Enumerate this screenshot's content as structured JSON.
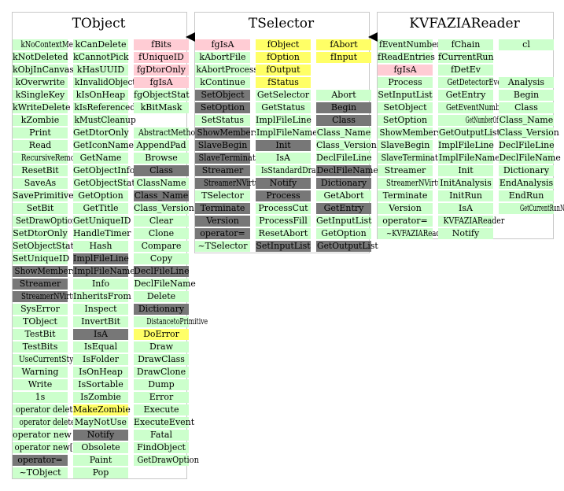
{
  "colors": {
    "method": "#ccffcc",
    "member": "#ffccd4",
    "data_member": "#ffff66",
    "hidden": "#777777",
    "border": "#c8c8c8"
  },
  "legend_kinds": {
    "g": "method (public)",
    "p": "enum / constant member",
    "y": "data member",
    "x": "private / inherited-hidden"
  },
  "classes": [
    {
      "name": "TObject",
      "columns": [
        [
          {
            "t": "kNoContextMenu",
            "k": "g"
          },
          {
            "t": "kNotDeleted",
            "k": "g"
          },
          {
            "t": "kObjInCanvas",
            "k": "g"
          },
          {
            "t": "kOverwrite",
            "k": "g"
          },
          {
            "t": "kSingleKey",
            "k": "g"
          },
          {
            "t": "kWriteDelete",
            "k": "g"
          },
          {
            "t": "kZombie",
            "k": "g"
          },
          {
            "t": "Print",
            "k": "g"
          },
          {
            "t": "Read",
            "k": "g"
          },
          {
            "t": "RecursiveRemove",
            "k": "g"
          },
          {
            "t": "ResetBit",
            "k": "g"
          },
          {
            "t": "SaveAs",
            "k": "g"
          },
          {
            "t": "SavePrimitive",
            "k": "g"
          },
          {
            "t": "SetBit",
            "k": "g"
          },
          {
            "t": "SetDrawOption",
            "k": "g"
          },
          {
            "t": "SetDtorOnly",
            "k": "g"
          },
          {
            "t": "SetObjectStat",
            "k": "g"
          },
          {
            "t": "SetUniqueID",
            "k": "g"
          },
          {
            "t": "ShowMembers",
            "k": "x"
          },
          {
            "t": "Streamer",
            "k": "x"
          },
          {
            "t": "StreamerNVirtual",
            "k": "x"
          },
          {
            "t": "SysError",
            "k": "g"
          },
          {
            "t": "TObject",
            "k": "g"
          },
          {
            "t": "TestBit",
            "k": "g"
          },
          {
            "t": "TestBits",
            "k": "g"
          },
          {
            "t": "UseCurrentStyle",
            "k": "g"
          },
          {
            "t": "Warning",
            "k": "g"
          },
          {
            "t": "Write",
            "k": "g"
          },
          {
            "t": "1s",
            "k": "g"
          },
          {
            "t": "operator delete",
            "k": "g"
          },
          {
            "t": "operator delete[]",
            "k": "g"
          },
          {
            "t": "operator new",
            "k": "g"
          },
          {
            "t": "operator new[]",
            "k": "g"
          },
          {
            "t": "operator=",
            "k": "x"
          },
          {
            "t": "~TObject",
            "k": "g"
          }
        ],
        [
          {
            "t": "kCanDelete",
            "k": "g"
          },
          {
            "t": "kCannotPick",
            "k": "g"
          },
          {
            "t": "kHasUUID",
            "k": "g"
          },
          {
            "t": "kInvalidObject",
            "k": "g"
          },
          {
            "t": "kIsOnHeap",
            "k": "g"
          },
          {
            "t": "kIsReferenced",
            "k": "g"
          },
          {
            "t": "kMustCleanup",
            "k": "g"
          },
          {
            "t": "GetDtorOnly",
            "k": "g"
          },
          {
            "t": "GetIconName",
            "k": "g"
          },
          {
            "t": "GetName",
            "k": "g"
          },
          {
            "t": "GetObjectInfo",
            "k": "g"
          },
          {
            "t": "GetObjectStat",
            "k": "g"
          },
          {
            "t": "GetOption",
            "k": "g"
          },
          {
            "t": "GetTitle",
            "k": "g"
          },
          {
            "t": "GetUniqueID",
            "k": "g"
          },
          {
            "t": "HandleTimer",
            "k": "g"
          },
          {
            "t": "Hash",
            "k": "g"
          },
          {
            "t": "ImplFileLine",
            "k": "x"
          },
          {
            "t": "ImplFileName",
            "k": "x"
          },
          {
            "t": "Info",
            "k": "g"
          },
          {
            "t": "InheritsFrom",
            "k": "g"
          },
          {
            "t": "Inspect",
            "k": "g"
          },
          {
            "t": "InvertBit",
            "k": "g"
          },
          {
            "t": "IsA",
            "k": "x"
          },
          {
            "t": "IsEqual",
            "k": "g"
          },
          {
            "t": "IsFolder",
            "k": "g"
          },
          {
            "t": "IsOnHeap",
            "k": "g"
          },
          {
            "t": "IsSortable",
            "k": "g"
          },
          {
            "t": "IsZombie",
            "k": "g"
          },
          {
            "t": "MakeZombie",
            "k": "y"
          },
          {
            "t": "MayNotUse",
            "k": "g"
          },
          {
            "t": "Notify",
            "k": "x"
          },
          {
            "t": "Obsolete",
            "k": "g"
          },
          {
            "t": "Paint",
            "k": "g"
          },
          {
            "t": "Pop",
            "k": "g"
          }
        ],
        [
          {
            "t": "fBits",
            "k": "p"
          },
          {
            "t": "fUniqueID",
            "k": "p"
          },
          {
            "t": "fgDtorOnly",
            "k": "p"
          },
          {
            "t": "fgIsA",
            "k": "p"
          },
          {
            "t": "fgObjectStat",
            "k": "g"
          },
          {
            "t": "kBitMask",
            "k": "g"
          },
          {
            "t": "",
            "k": "b"
          },
          {
            "t": "AbstractMethod",
            "k": "g"
          },
          {
            "t": "AppendPad",
            "k": "g"
          },
          {
            "t": "Browse",
            "k": "g"
          },
          {
            "t": "Class",
            "k": "x"
          },
          {
            "t": "ClassName",
            "k": "g"
          },
          {
            "t": "Class_Name",
            "k": "x"
          },
          {
            "t": "Class_Version",
            "k": "g"
          },
          {
            "t": "Clear",
            "k": "g"
          },
          {
            "t": "Clone",
            "k": "g"
          },
          {
            "t": "Compare",
            "k": "g"
          },
          {
            "t": "Copy",
            "k": "g"
          },
          {
            "t": "DeclFileLine",
            "k": "x"
          },
          {
            "t": "DeclFileName",
            "k": "g"
          },
          {
            "t": "Delete",
            "k": "g"
          },
          {
            "t": "Dictionary",
            "k": "x"
          },
          {
            "t": "DistancetoPrimitive",
            "k": "g"
          },
          {
            "t": "DoError",
            "k": "y"
          },
          {
            "t": "Draw",
            "k": "g"
          },
          {
            "t": "DrawClass",
            "k": "g"
          },
          {
            "t": "DrawClone",
            "k": "g"
          },
          {
            "t": "Dump",
            "k": "g"
          },
          {
            "t": "Error",
            "k": "g"
          },
          {
            "t": "Execute",
            "k": "g"
          },
          {
            "t": "ExecuteEvent",
            "k": "g"
          },
          {
            "t": "Fatal",
            "k": "g"
          },
          {
            "t": "FindObject",
            "k": "g"
          },
          {
            "t": "GetDrawOption",
            "k": "g"
          }
        ]
      ]
    },
    {
      "name": "TSelector",
      "columns": [
        [
          {
            "t": "fgIsA",
            "k": "p"
          },
          {
            "t": "kAbortFile",
            "k": "g"
          },
          {
            "t": "kAbortProcess",
            "k": "g"
          },
          {
            "t": "kContinue",
            "k": "g"
          },
          {
            "t": "SetObject",
            "k": "x"
          },
          {
            "t": "SetOption",
            "k": "x"
          },
          {
            "t": "SetStatus",
            "k": "g"
          },
          {
            "t": "ShowMembers",
            "k": "x"
          },
          {
            "t": "SlaveBegin",
            "k": "x"
          },
          {
            "t": "SlaveTerminate",
            "k": "x"
          },
          {
            "t": "Streamer",
            "k": "x"
          },
          {
            "t": "StreamerNVirtual",
            "k": "x"
          },
          {
            "t": "TSelector",
            "k": "g"
          },
          {
            "t": "Terminate",
            "k": "x"
          },
          {
            "t": "Version",
            "k": "x"
          },
          {
            "t": "operator=",
            "k": "x"
          },
          {
            "t": "~TSelector",
            "k": "g"
          }
        ],
        [
          {
            "t": "fObject",
            "k": "y"
          },
          {
            "t": "fOption",
            "k": "y"
          },
          {
            "t": "fOutput",
            "k": "y"
          },
          {
            "t": "fStatus",
            "k": "y"
          },
          {
            "t": "GetSelector",
            "k": "g"
          },
          {
            "t": "GetStatus",
            "k": "g"
          },
          {
            "t": "ImplFileLine",
            "k": "g"
          },
          {
            "t": "ImplFileName",
            "k": "g"
          },
          {
            "t": "Init",
            "k": "x"
          },
          {
            "t": "IsA",
            "k": "g"
          },
          {
            "t": "IsStandardDraw",
            "k": "g"
          },
          {
            "t": "Notify",
            "k": "x"
          },
          {
            "t": "Process",
            "k": "x"
          },
          {
            "t": "ProcessCut",
            "k": "g"
          },
          {
            "t": "ProcessFill",
            "k": "g"
          },
          {
            "t": "ResetAbort",
            "k": "g"
          },
          {
            "t": "SetInputList",
            "k": "x"
          }
        ],
        [
          {
            "t": "fAbort",
            "k": "y"
          },
          {
            "t": "fInput",
            "k": "y"
          },
          {
            "t": "",
            "k": "b"
          },
          {
            "t": "",
            "k": "b"
          },
          {
            "t": "Abort",
            "k": "g"
          },
          {
            "t": "Begin",
            "k": "x"
          },
          {
            "t": "Class",
            "k": "x"
          },
          {
            "t": "Class_Name",
            "k": "g"
          },
          {
            "t": "Class_Version",
            "k": "g"
          },
          {
            "t": "DeclFileLine",
            "k": "g"
          },
          {
            "t": "DeclFileName",
            "k": "x"
          },
          {
            "t": "Dictionary",
            "k": "x"
          },
          {
            "t": "GetAbort",
            "k": "g"
          },
          {
            "t": "GetEntry",
            "k": "x"
          },
          {
            "t": "GetInputList",
            "k": "g"
          },
          {
            "t": "GetOption",
            "k": "g"
          },
          {
            "t": "GetOutputList",
            "k": "x"
          }
        ]
      ]
    },
    {
      "name": "KVFAZIAReader",
      "columns": [
        [
          {
            "t": "fEventNumber",
            "k": "g"
          },
          {
            "t": "fReadEntries",
            "k": "g"
          },
          {
            "t": "fgIsA",
            "k": "p"
          },
          {
            "t": "Process",
            "k": "g"
          },
          {
            "t": "SetInputList",
            "k": "g"
          },
          {
            "t": "SetObject",
            "k": "g"
          },
          {
            "t": "SetOption",
            "k": "g"
          },
          {
            "t": "ShowMembers",
            "k": "g"
          },
          {
            "t": "SlaveBegin",
            "k": "g"
          },
          {
            "t": "SlaveTerminate",
            "k": "g"
          },
          {
            "t": "Streamer",
            "k": "g"
          },
          {
            "t": "StreamerNVirtual",
            "k": "g"
          },
          {
            "t": "Terminate",
            "k": "g"
          },
          {
            "t": "Version",
            "k": "g"
          },
          {
            "t": "operator=",
            "k": "g"
          },
          {
            "t": "~KVFAZIAReader",
            "k": "g"
          }
        ],
        [
          {
            "t": "fChain",
            "k": "g"
          },
          {
            "t": "fCurrentRun",
            "k": "g"
          },
          {
            "t": "fDetEv",
            "k": "g"
          },
          {
            "t": "GetDetectorEvent",
            "k": "g"
          },
          {
            "t": "GetEntry",
            "k": "g"
          },
          {
            "t": "GetEventNumber",
            "k": "g"
          },
          {
            "t": "GetNumberOfReadEntries",
            "k": "g"
          },
          {
            "t": "GetOutputList",
            "k": "g"
          },
          {
            "t": "ImplFileLine",
            "k": "g"
          },
          {
            "t": "ImplFileName",
            "k": "g"
          },
          {
            "t": "Init",
            "k": "g"
          },
          {
            "t": "InitAnalysis",
            "k": "g"
          },
          {
            "t": "InitRun",
            "k": "g"
          },
          {
            "t": "IsA",
            "k": "g"
          },
          {
            "t": "KVFAZIAReader",
            "k": "g"
          },
          {
            "t": "Notify",
            "k": "g"
          }
        ],
        [
          {
            "t": "cl",
            "k": "g"
          },
          {
            "t": "",
            "k": "b"
          },
          {
            "t": "",
            "k": "b"
          },
          {
            "t": "Analysis",
            "k": "g"
          },
          {
            "t": "Begin",
            "k": "g"
          },
          {
            "t": "Class",
            "k": "g"
          },
          {
            "t": "Class_Name",
            "k": "g"
          },
          {
            "t": "Class_Version",
            "k": "g"
          },
          {
            "t": "DeclFileLine",
            "k": "g"
          },
          {
            "t": "DeclFileName",
            "k": "g"
          },
          {
            "t": "Dictionary",
            "k": "g"
          },
          {
            "t": "EndAnalysis",
            "k": "g"
          },
          {
            "t": "EndRun",
            "k": "g"
          },
          {
            "t": "GetCurrentRunNumber",
            "k": "g"
          }
        ]
      ]
    }
  ]
}
